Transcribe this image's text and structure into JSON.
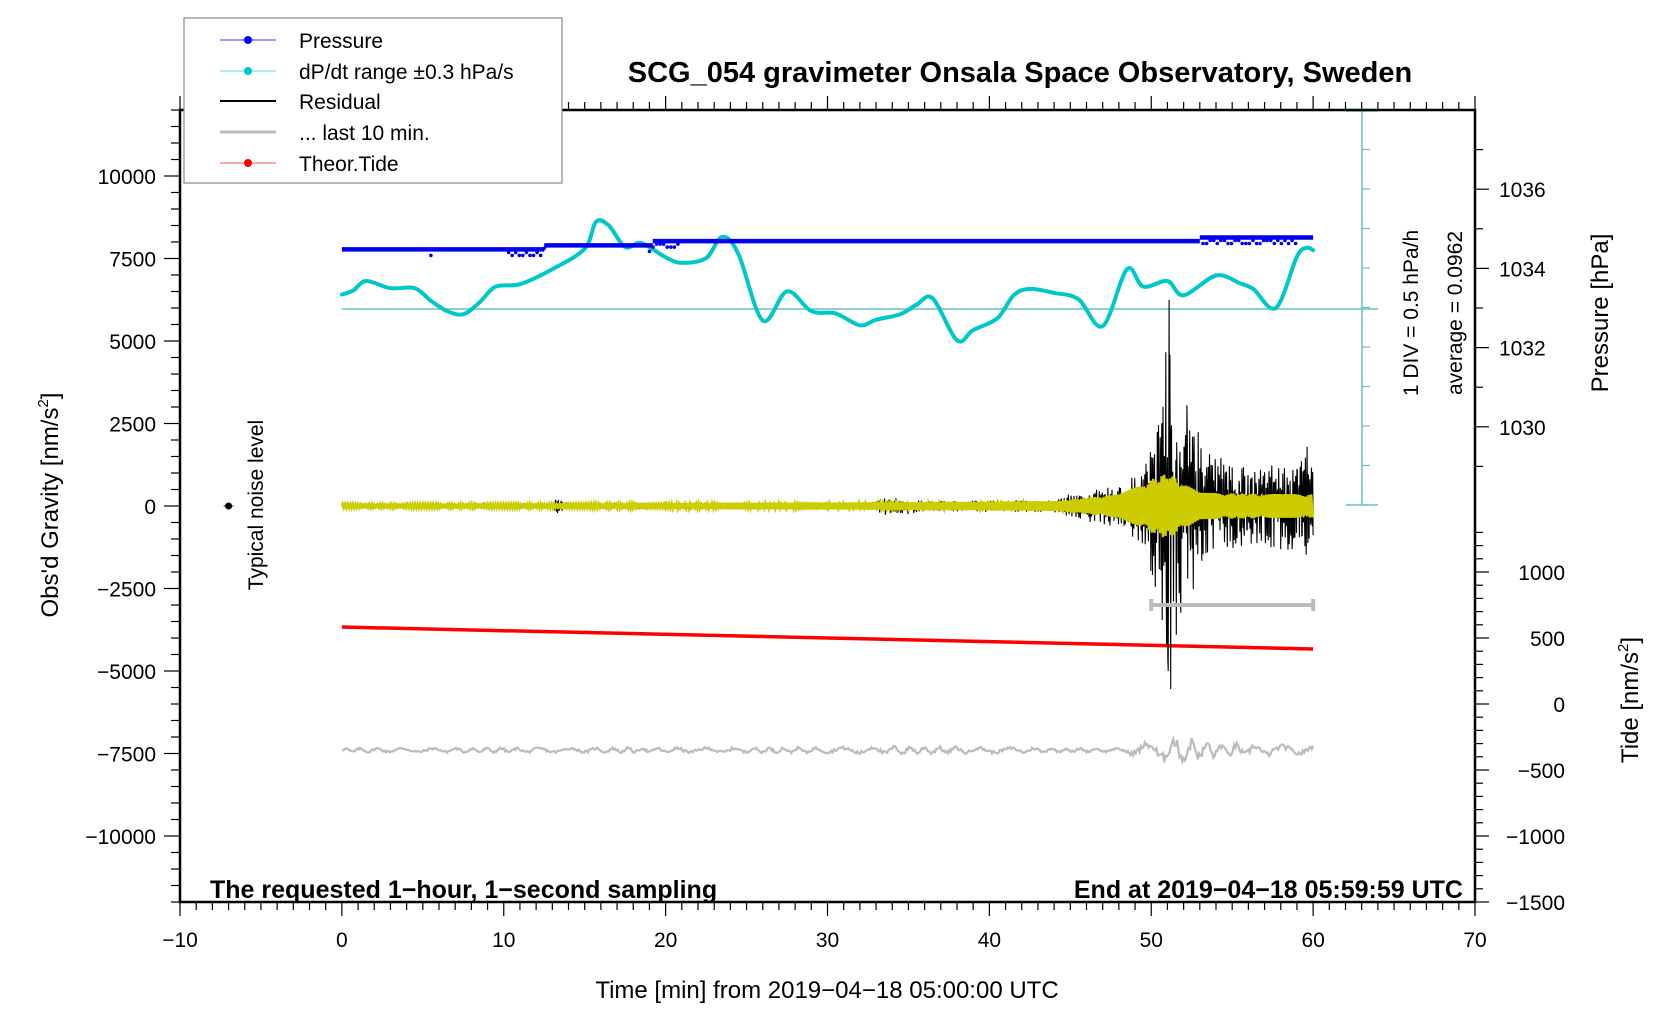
{
  "chart_data": {
    "type": "line",
    "title": "SCG_054 gravimeter Onsala Space Observatory, Sweden",
    "xlabel": "Time [min] from 2019−04−18 05:00:00 UTC",
    "ylabel_left": "Obs'd Gravity [nm/s2]",
    "ylabel_left_main": "Obs'd Gravity [nm/s",
    "ylabel_right_pressure": "Pressure [hPa]",
    "ylabel_right_tide_main": "Tide [nm/s",
    "superscript": "2",
    "bracket_close": "]",
    "xlim": [
      -10,
      70
    ],
    "ylim_left": [
      -12000,
      12000
    ],
    "ylim_pressure": [
      1018,
      1038
    ],
    "ylim_tide": [
      -1500,
      4500
    ],
    "x_ticks": [
      -10,
      0,
      10,
      20,
      30,
      40,
      50,
      60,
      70
    ],
    "x_tick_labels": [
      "−10",
      "0",
      "10",
      "20",
      "30",
      "40",
      "50",
      "60",
      "70"
    ],
    "y_left_ticks": [
      10000,
      7500,
      5000,
      2500,
      0,
      -2500,
      -5000,
      -7500,
      -10000
    ],
    "y_left_tick_labels": [
      "10000",
      "7500",
      "5000",
      "2500",
      "0",
      "−2500",
      "−5000",
      "−7500",
      "−10000"
    ],
    "pressure_ticks": [
      1036,
      1034,
      1032,
      1030
    ],
    "pressure_tick_labels": [
      "1036",
      "1034",
      "1032",
      "1030"
    ],
    "tide_ticks": [
      1000,
      500,
      0,
      -500,
      -1000,
      -1500
    ],
    "tide_tick_labels": [
      "1000",
      "500",
      "0",
      "−500",
      "−1000",
      "−1500"
    ],
    "grid": false,
    "legend": {
      "placement": "top-left",
      "entries": [
        {
          "label": "Pressure",
          "color": "#0000ff",
          "style": "line-dot"
        },
        {
          "label": "dP/dt range ±0.3 hPa/s",
          "color": "#00cccc",
          "style": "line-dot"
        },
        {
          "label": "Residual",
          "color": "#000000",
          "style": "line"
        },
        {
          "label": "... last 10 min.",
          "color": "#bbbbbb",
          "style": "line"
        },
        {
          "label": "Theor.Tide",
          "color": "#ff0000",
          "style": "line-dot"
        }
      ]
    },
    "annotations": {
      "bottom_left": "The requested 1−hour, 1−second sampling",
      "bottom_right": "End at 2019−04−18 05:59:59 UTC",
      "noise_label": "Typical noise level",
      "div_label": "1 DIV = 0.5 hPa/h",
      "average_label": "average = 0.0962"
    },
    "colors": {
      "pressure": "#0000ee",
      "dpdt": "#00c8c8",
      "dpdt_scale": "#66c2c2",
      "residual": "#000000",
      "filtered": "#cccc00",
      "last10": "#bbbbbb",
      "tide": "#ff0000"
    },
    "dpdt_average": 0.0962,
    "dpdt_div_hpa_per_h": 0.5,
    "dpdt_divisions_above": 5,
    "dpdt_divisions_below": 5,
    "series": [
      {
        "name": "Pressure",
        "axis": "pressure",
        "unit": "hPa",
        "x": [
          0,
          12.5,
          12.5,
          19.2,
          19.2,
          53,
          53,
          60
        ],
        "values": [
          1034.48,
          1034.48,
          1034.58,
          1034.58,
          1034.69,
          1034.69,
          1034.78,
          1034.78
        ]
      },
      {
        "name": "dP/dt",
        "axis": "dpdt",
        "unit": "hPa/h",
        "x": [
          0,
          0.7,
          1.5,
          3,
          4.5,
          5.5,
          6.5,
          7.5,
          8.5,
          9.5,
          11,
          13,
          15,
          15.7,
          16.5,
          17.5,
          18.5,
          20,
          21,
          22.5,
          23.5,
          24.5,
          26,
          27.5,
          29,
          30.5,
          32,
          33,
          34.5,
          35.5,
          36.5,
          38,
          39,
          40.5,
          41.5,
          42.5,
          44,
          45.5,
          47,
          48.5,
          49.5,
          51,
          52,
          54,
          55.5,
          56.3,
          57.7,
          59,
          59.6,
          60
        ],
        "values": [
          0.28,
          0.33,
          0.45,
          0.36,
          0.36,
          0.2,
          0.07,
          0.03,
          0.18,
          0.38,
          0.41,
          0.6,
          0.86,
          1.2,
          1.15,
          0.88,
          0.93,
          0.75,
          0.68,
          0.74,
          1.01,
          0.79,
          -0.05,
          0.32,
          0.07,
          0.04,
          -0.11,
          -0.04,
          0.03,
          0.15,
          0.23,
          -0.3,
          -0.17,
          -0.02,
          0.27,
          0.35,
          0.3,
          0.22,
          -0.12,
          0.6,
          0.38,
          0.45,
          0.27,
          0.52,
          0.42,
          0.35,
          0.11,
          0.76,
          0.87,
          0.84
        ]
      },
      {
        "name": "Residual",
        "axis": "left",
        "unit": "nm/s2",
        "envelope_x": [
          0,
          13,
          13.4,
          13.8,
          14,
          32.5,
          33.5,
          35,
          36,
          44,
          45.5,
          48.5,
          49.5,
          50.3,
          50.8,
          51.1,
          51.6,
          52.3,
          53,
          54,
          57,
          59.5,
          60
        ],
        "envelope_values": [
          50,
          60,
          350,
          120,
          90,
          90,
          280,
          250,
          160,
          200,
          450,
          700,
          1400,
          2800,
          4200,
          6250,
          4100,
          3500,
          2200,
          1500,
          1300,
          1900,
          1500
        ],
        "peak_max": 6250,
        "peak_min": -5000,
        "peak_time": 51.1
      },
      {
        "name": "Filtered residual",
        "axis": "left",
        "unit": "nm/s2",
        "envelope_x": [
          0,
          13,
          30,
          44,
          48,
          50,
          51,
          52,
          53,
          60
        ],
        "envelope_values": [
          60,
          70,
          100,
          150,
          350,
          800,
          1000,
          700,
          400,
          350
        ]
      },
      {
        "name": "... last 10 min.",
        "axis": "left",
        "unit": "nm/s2",
        "baseline": -7400,
        "envelope_x": [
          0,
          30,
          33,
          48,
          49.5,
          51,
          52.5,
          54,
          60
        ],
        "envelope_values": [
          80,
          100,
          150,
          60,
          250,
          450,
          400,
          250,
          150
        ]
      },
      {
        "name": "Theor.Tide",
        "axis": "tide",
        "unit": "nm/s2",
        "x": [
          0,
          60
        ],
        "values": [
          583,
          417
        ]
      }
    ],
    "last10_range_min": [
      50,
      60
    ],
    "last10_bar_level": -3000,
    "noise_level_marker": {
      "x": -7,
      "y": 0
    }
  }
}
